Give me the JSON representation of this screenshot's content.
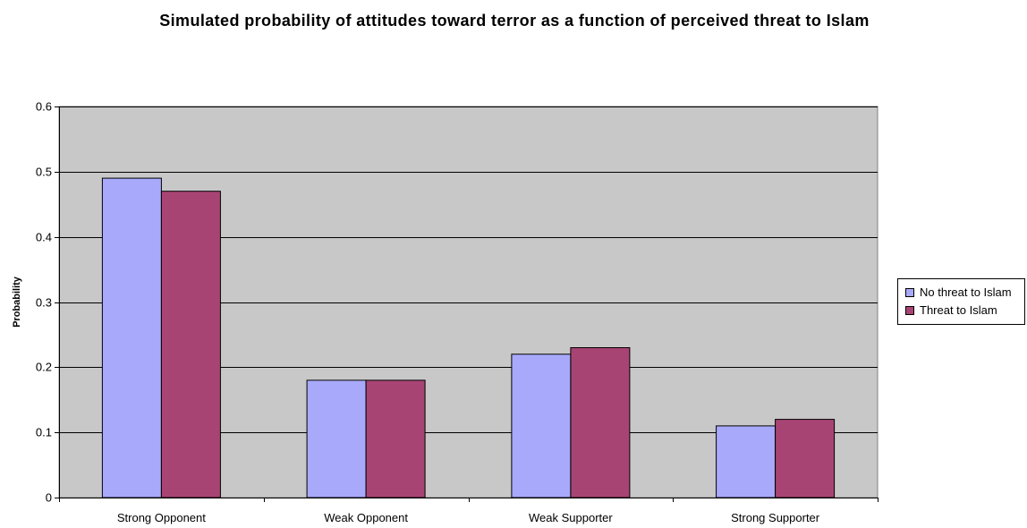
{
  "chart_data": {
    "type": "bar",
    "title": "Simulated probability of attitudes toward terror as a function of perceived threat to Islam",
    "ylabel": "Probability",
    "xlabel": "",
    "categories": [
      "Strong Opponent",
      "Weak Opponent",
      "Weak Supporter",
      "Strong Supporter"
    ],
    "series": [
      {
        "name": "No threat to Islam",
        "values": [
          0.49,
          0.18,
          0.22,
          0.11
        ],
        "color": "#a9a9fc"
      },
      {
        "name": "Threat to Islam",
        "values": [
          0.47,
          0.18,
          0.23,
          0.12
        ],
        "color": "#a84474"
      }
    ],
    "ylim": [
      0,
      0.6
    ],
    "yticks": [
      "0",
      "0.1",
      "0.2",
      "0.3",
      "0.4",
      "0.5",
      "0.6"
    ],
    "grid": true,
    "plot_background": "#c8c8c8",
    "legend_position": "right"
  }
}
